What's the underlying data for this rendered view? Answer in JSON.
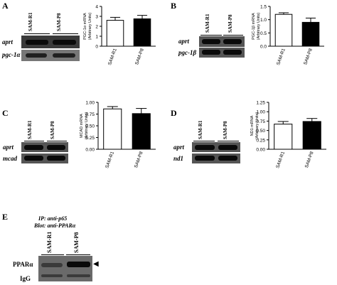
{
  "panels": [
    {
      "letter": "A",
      "lanes": [
        "SAM-R1",
        "SAM-P8"
      ],
      "rows": [
        "aprt",
        "pgc-1α"
      ],
      "chart": {
        "type": "bar",
        "ylabel": "PGC-1α mRNA\n(Arbitrary Units)",
        "ylim": [
          0,
          4
        ],
        "yticks": [
          "0",
          "1",
          "2",
          "3",
          "4"
        ],
        "categories": [
          "SAM-R1",
          "SAM-P8"
        ],
        "values": [
          2.6,
          2.75
        ],
        "errors": [
          0.3,
          0.35
        ],
        "fills": [
          "#ffffff",
          "#000000"
        ]
      }
    },
    {
      "letter": "B",
      "lanes": [
        "SAM-R1",
        "SAM-P8"
      ],
      "rows": [
        "aprt",
        "pgc-1β"
      ],
      "chart": {
        "type": "bar",
        "ylabel": "PGC-1β mRNA\n(Arbitrary Units)",
        "ylim": [
          0,
          1.5
        ],
        "yticks": [
          "0.0",
          "0.5",
          "1.0",
          "1.5"
        ],
        "categories": [
          "SAM-R1",
          "SAM-P8"
        ],
        "values": [
          1.2,
          0.9
        ],
        "errors": [
          0.06,
          0.16
        ],
        "fills": [
          "#ffffff",
          "#000000"
        ]
      }
    },
    {
      "letter": "C",
      "lanes": [
        "SAM-R1",
        "SAM-P8"
      ],
      "rows": [
        "aprt",
        "mcad"
      ],
      "chart": {
        "type": "bar",
        "ylabel": "MCAD mRNA\n(Arbitrary Units)",
        "ylim": [
          0,
          1
        ],
        "yticks": [
          "0.00",
          "0.25",
          "0.50",
          "0.75",
          "1.00"
        ],
        "categories": [
          "SAM-R1",
          "SAM-P8"
        ],
        "values": [
          0.86,
          0.76
        ],
        "errors": [
          0.05,
          0.11
        ],
        "fills": [
          "#ffffff",
          "#000000"
        ]
      }
    },
    {
      "letter": "D",
      "lanes": [
        "SAM-R1",
        "SAM-P8"
      ],
      "rows": [
        "aprt",
        "nd1"
      ],
      "chart": {
        "type": "bar",
        "ylabel": "ND1 mRNA\n(Arbitrary Units)",
        "ylim": [
          0,
          1.25
        ],
        "yticks": [
          "0.00",
          "0.25",
          "0.50",
          "0.75",
          "1.00",
          "1.25"
        ],
        "categories": [
          "SAM-R1",
          "SAM-P8"
        ],
        "values": [
          0.67,
          0.74
        ],
        "errors": [
          0.07,
          0.08
        ],
        "fills": [
          "#ffffff",
          "#000000"
        ]
      }
    }
  ],
  "panel_e": {
    "letter": "E",
    "title_line1": "IP: anti-p65",
    "title_line2": "Blot: anti-PPARα",
    "lanes": [
      "SAM-R1",
      "SAM-P8"
    ],
    "rows": [
      "PPARα",
      "IgG"
    ],
    "arrow": "◀"
  }
}
